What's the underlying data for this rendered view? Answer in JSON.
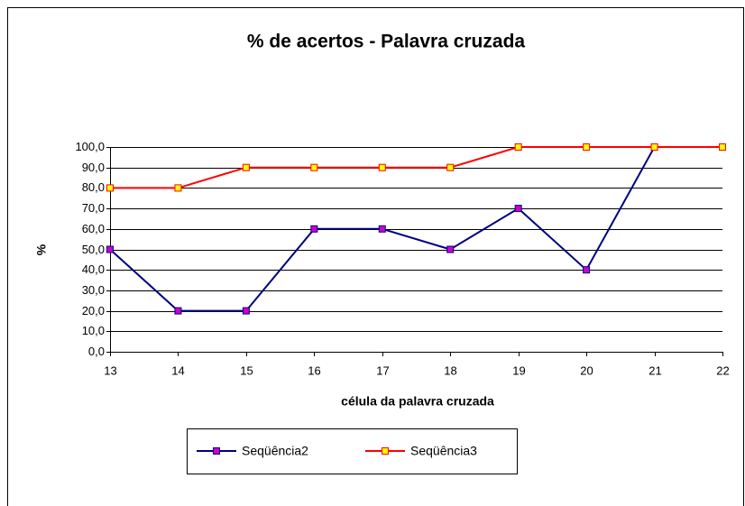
{
  "chart_data": {
    "type": "line",
    "title": "% de acertos - Palavra cruzada",
    "xlabel": "célula da palavra cruzada",
    "ylabel": "%",
    "x": [
      13,
      14,
      15,
      16,
      17,
      18,
      19,
      20,
      21,
      22
    ],
    "xlim": [
      13,
      22
    ],
    "xticks": [
      13,
      14,
      15,
      16,
      17,
      18,
      19,
      20,
      21,
      22
    ],
    "ylim": [
      0,
      100
    ],
    "yticks": [
      {
        "value": 0,
        "label": "0,0"
      },
      {
        "value": 10,
        "label": "10,0"
      },
      {
        "value": 20,
        "label": "20,0"
      },
      {
        "value": 30,
        "label": "30,0"
      },
      {
        "value": 40,
        "label": "40,0"
      },
      {
        "value": 50,
        "label": "50,0"
      },
      {
        "value": 60,
        "label": "60,0"
      },
      {
        "value": 70,
        "label": "70,0"
      },
      {
        "value": 80,
        "label": "80,0"
      },
      {
        "value": 90,
        "label": "90,0"
      },
      {
        "value": 100,
        "label": "100,0"
      }
    ],
    "grid": true,
    "legend": "bottom",
    "series": [
      {
        "name": "Seqüência2",
        "color": "#000080",
        "marker_color": "#cc00cc",
        "values": [
          50,
          20,
          20,
          60,
          60,
          50,
          70,
          40,
          100,
          100
        ]
      },
      {
        "name": "Seqüência3",
        "color": "#ff0000",
        "marker_color": "#ffff00",
        "values": [
          80,
          80,
          90,
          90,
          90,
          90,
          100,
          100,
          100,
          100
        ]
      }
    ]
  }
}
